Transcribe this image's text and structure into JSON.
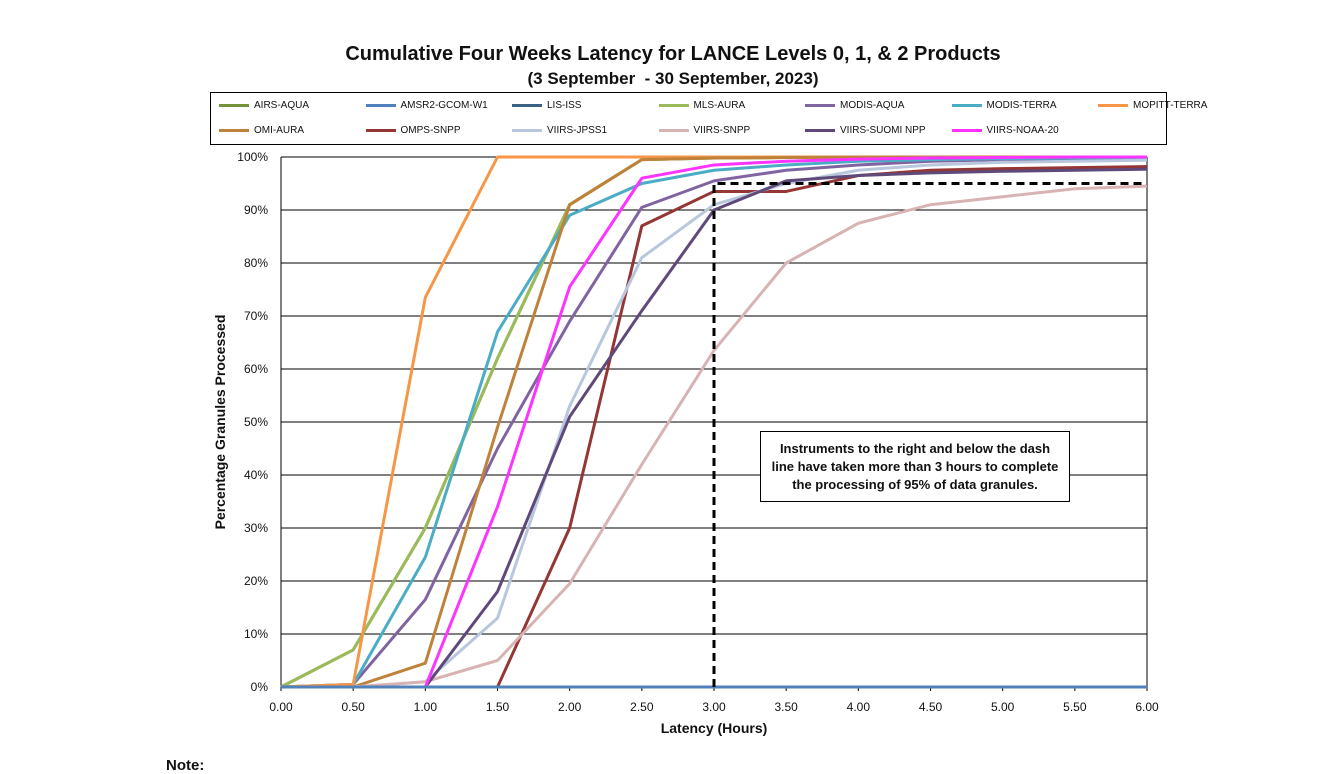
{
  "chart_data": {
    "type": "line",
    "title": "Cumulative Four Weeks Latency  for LANCE Levels 0, 1, & 2 Products",
    "subtitle": "(3 September  - 30 September, 2023)",
    "xlabel": "Latency (Hours)",
    "ylabel": "Percentage Granules Processed",
    "xlim": [
      0,
      6
    ],
    "ylim": [
      0,
      100
    ],
    "x_ticks": [
      "0.00",
      "0.50",
      "1.00",
      "1.50",
      "2.00",
      "2.50",
      "3.00",
      "3.50",
      "4.00",
      "4.50",
      "5.00",
      "5.50",
      "6.00"
    ],
    "y_ticks": [
      "0%",
      "10%",
      "20%",
      "30%",
      "40%",
      "50%",
      "60%",
      "70%",
      "80%",
      "90%",
      "100%"
    ],
    "grid": "horizontal",
    "legend_position": "top",
    "x": [
      0,
      0.5,
      1,
      1.5,
      2,
      2.5,
      3,
      3.5,
      4,
      4.5,
      5,
      5.5,
      6
    ],
    "series": [
      {
        "name": "AIRS-AQUA",
        "color": "#76923c",
        "values": [
          0,
          7,
          30,
          62,
          91,
          99.5,
          99.8,
          99.9,
          100,
          100,
          100,
          100,
          100
        ]
      },
      {
        "name": "AMSR2-GCOM-W1",
        "color": "#4f81bd",
        "values": [
          0,
          0,
          0,
          0,
          0,
          0,
          0,
          0,
          0,
          0,
          0,
          0,
          0
        ]
      },
      {
        "name": "LIS-ISS",
        "color": "#3a6186",
        "values": [
          0,
          0,
          0,
          0,
          0,
          0,
          0,
          0,
          0,
          0,
          0,
          0,
          0
        ]
      },
      {
        "name": "MLS-AURA",
        "color": "#9bbb59",
        "values": [
          0,
          7,
          30,
          62,
          91,
          99.5,
          99.8,
          99.9,
          100,
          100,
          100,
          100,
          100
        ]
      },
      {
        "name": "MODIS-AQUA",
        "color": "#8064a2",
        "values": [
          0,
          0.5,
          16.5,
          45,
          69,
          90.5,
          95.5,
          97.5,
          98.5,
          99.2,
          99.5,
          99.7,
          99.8
        ]
      },
      {
        "name": "MODIS-TERRA",
        "color": "#4bacc6",
        "values": [
          0,
          0.5,
          24.5,
          67,
          89,
          95,
          97.5,
          98.5,
          99.2,
          99.5,
          99.7,
          99.8,
          99.9
        ]
      },
      {
        "name": "MOPITT-TERRA",
        "color": "#f79646",
        "values": [
          0,
          0.5,
          73.5,
          100,
          100,
          100,
          100,
          100,
          100,
          100,
          100,
          100,
          100
        ]
      },
      {
        "name": "OMI-AURA",
        "color": "#c0823a",
        "values": [
          0,
          0,
          4.5,
          49,
          91,
          99.5,
          99.8,
          99.9,
          100,
          100,
          100,
          100,
          100
        ]
      },
      {
        "name": "OMPS-SNPP",
        "color": "#943634",
        "values": [
          0,
          0,
          0,
          0,
          30,
          87,
          93.5,
          93.5,
          96.5,
          97.5,
          97.8,
          98,
          98.2
        ]
      },
      {
        "name": "VIIRS-JPSS1",
        "color": "#b8c7de",
        "values": [
          0,
          0,
          1,
          13,
          53,
          81,
          91,
          95,
          97.5,
          98.5,
          99,
          99.2,
          99.4
        ]
      },
      {
        "name": "VIIRS-SNPP",
        "color": "#d7b3b3",
        "values": [
          0,
          0,
          1,
          5,
          19.5,
          42,
          63.5,
          80,
          87.5,
          91,
          92.5,
          94,
          94.5
        ]
      },
      {
        "name": "VIIRS-SUOMI NPP",
        "color": "#5f497a",
        "values": [
          0,
          0,
          0,
          18,
          51,
          71,
          90,
          95.5,
          96.5,
          97,
          97.3,
          97.5,
          97.7
        ]
      },
      {
        "name": "VIIRS-NOAA-20",
        "color": "#ff33ff",
        "values": [
          0,
          0,
          0,
          34,
          75.5,
          96,
          98.5,
          99.2,
          99.6,
          99.8,
          99.9,
          100,
          100
        ]
      }
    ],
    "reference_line": {
      "x": 3,
      "y": 95
    },
    "annotation": "Instruments to the right and below the dash line have taken more than 3 hours to complete the processing of 95% of data granules."
  },
  "footer_note": "Note:"
}
